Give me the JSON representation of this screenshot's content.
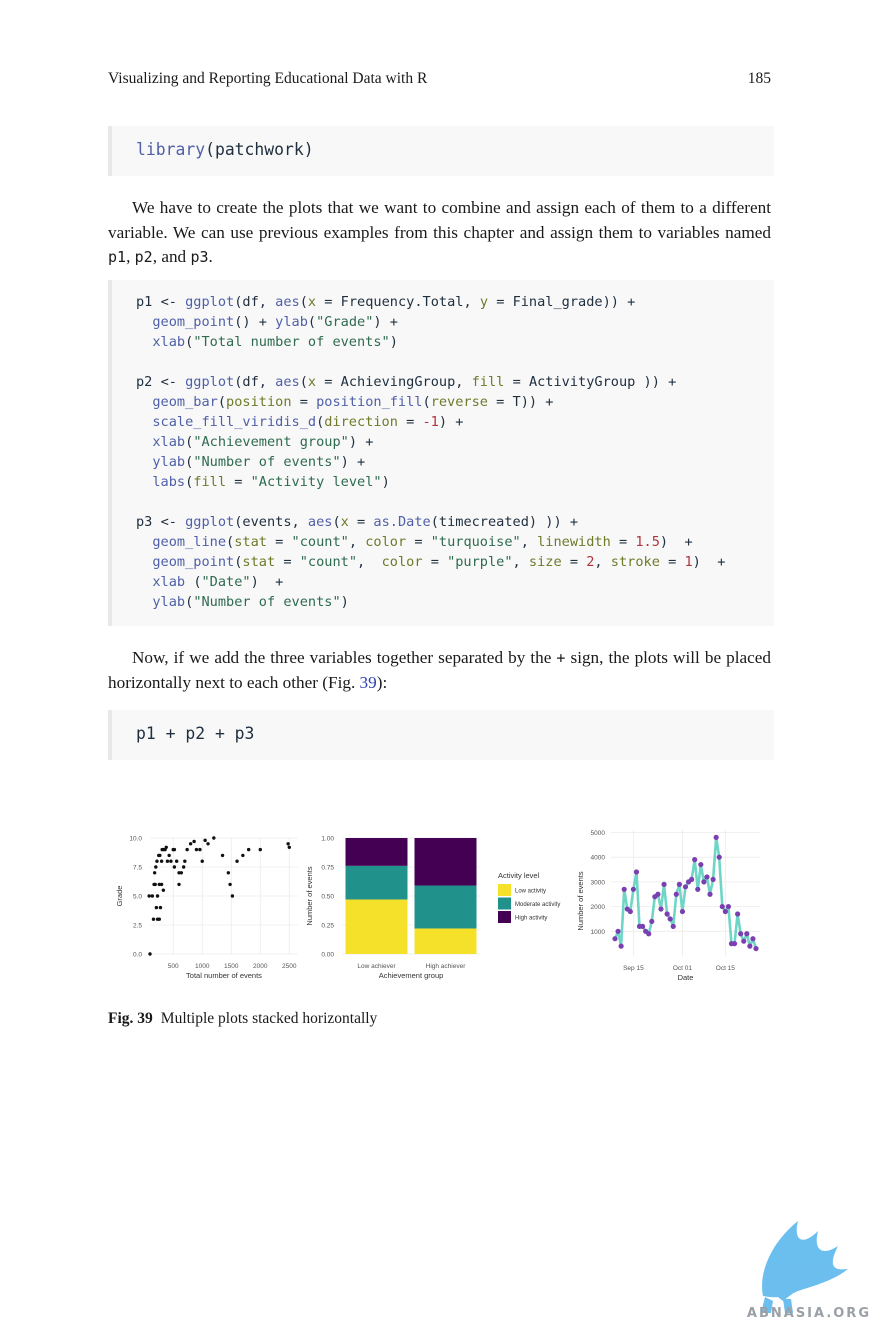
{
  "header": {
    "title": "Visualizing and Reporting Educational Data with R",
    "page_number": "185"
  },
  "code1": {
    "lines": [
      [
        "library",
        "(patchwork)"
      ]
    ]
  },
  "para1": {
    "text": "We have to create the plots that we want to combine and assign each of them to a different variable. We can use previous examples from this chapter and assign them to variables named ",
    "v1": "p1",
    "sep1": ", ",
    "v2": "p2",
    "sep2": ", and ",
    "v3": "p3",
    "end": "."
  },
  "code2": {
    "lines": [
      "p1 <- ggplot(df, aes(x = Frequency.Total, y = Final_grade)) +",
      "  geom_point() + ylab(\"Grade\") +",
      "  xlab(\"Total number of events\")",
      "",
      "p2 <- ggplot(df, aes(x = AchievingGroup, fill = ActivityGroup )) +",
      "  geom_bar(position = position_fill(reverse = T)) +",
      "  scale_fill_viridis_d(direction = -1) +",
      "  xlab(\"Achievement group\") +",
      "  ylab(\"Number of events\") +",
      "  labs(fill = \"Activity level\")",
      "",
      "p3 <- ggplot(events, aes(x = as.Date(timecreated) )) +",
      "  geom_line(stat = \"count\", color = \"turquoise\", linewidth = 1.5)  +",
      "  geom_point(stat = \"count\",  color = \"purple\", size = 2, stroke = 1)  +",
      "  xlab (\"Date\")  +",
      "  ylab(\"Number of events\")"
    ]
  },
  "para2": {
    "text_a": "Now, if we add the three variables together separated by the ",
    "plus": "+",
    "text_b": " sign, the plots will be placed horizontally next to each other (Fig. ",
    "ref": "39",
    "text_c": "):"
  },
  "code3": {
    "line": "p1 + p2 + p3"
  },
  "caption": {
    "label": "Fig. 39",
    "text": "Multiple plots stacked horizontally"
  },
  "watermark": {
    "text": "ABNASIA.ORG"
  },
  "colors": {
    "low": "#f5e12a",
    "moderate": "#21918c",
    "high": "#440154",
    "line": "#6fd6c7",
    "point": "#7a3fb0"
  },
  "chart_data": [
    {
      "type": "scatter",
      "xlabel": "Total number of events",
      "ylabel": "Grade",
      "xticks": [
        500,
        1000,
        1500,
        2000,
        2500
      ],
      "yticks": [
        "0.0",
        "2.5",
        "5.0",
        "7.5",
        "10.0"
      ],
      "xlim": [
        100,
        2650
      ],
      "ylim": [
        0,
        10
      ],
      "points": [
        [
          100,
          0
        ],
        [
          85,
          5
        ],
        [
          140,
          5
        ],
        [
          170,
          6
        ],
        [
          190,
          6
        ],
        [
          210,
          4
        ],
        [
          230,
          3
        ],
        [
          160,
          3
        ],
        [
          260,
          3
        ],
        [
          280,
          4
        ],
        [
          230,
          5
        ],
        [
          260,
          6
        ],
        [
          300,
          6
        ],
        [
          330,
          5.5
        ],
        [
          180,
          7
        ],
        [
          200,
          7.5
        ],
        [
          220,
          8
        ],
        [
          250,
          8.5
        ],
        [
          270,
          8.5
        ],
        [
          300,
          8
        ],
        [
          310,
          9
        ],
        [
          330,
          9
        ],
        [
          360,
          9
        ],
        [
          380,
          9.2
        ],
        [
          400,
          8
        ],
        [
          430,
          8.5
        ],
        [
          460,
          8
        ],
        [
          500,
          9
        ],
        [
          520,
          7.5
        ],
        [
          560,
          8
        ],
        [
          600,
          7
        ],
        [
          640,
          7
        ],
        [
          680,
          7.5
        ],
        [
          700,
          8
        ],
        [
          740,
          9
        ],
        [
          800,
          9.5
        ],
        [
          860,
          9.7
        ],
        [
          900,
          9
        ],
        [
          960,
          9
        ],
        [
          1000,
          8
        ],
        [
          1050,
          9.8
        ],
        [
          1100,
          9.5
        ],
        [
          1200,
          10
        ],
        [
          1350,
          8.5
        ],
        [
          1450,
          7
        ],
        [
          1480,
          6
        ],
        [
          1520,
          5
        ],
        [
          1600,
          8
        ],
        [
          1700,
          8.5
        ],
        [
          1800,
          9
        ],
        [
          2000,
          9
        ],
        [
          2500,
          9.2
        ],
        [
          2480,
          9.5
        ],
        [
          520,
          9
        ],
        [
          600,
          6
        ]
      ]
    },
    {
      "type": "bar",
      "xlabel": "Achievement group",
      "ylabel": "Number of events",
      "categories": [
        "Low achiever",
        "High achiever"
      ],
      "yticks": [
        "0.00",
        "0.25",
        "0.50",
        "0.75",
        "1.00"
      ],
      "ylim": [
        0,
        1
      ],
      "legend": {
        "title": "Activity level",
        "position": "right"
      },
      "series": [
        {
          "name": "Low activity",
          "values": [
            0.47,
            0.22
          ]
        },
        {
          "name": "Moderate activity",
          "values": [
            0.29,
            0.37
          ]
        },
        {
          "name": "High activity",
          "values": [
            0.24,
            0.41
          ]
        }
      ]
    },
    {
      "type": "line",
      "xlabel": "Date",
      "ylabel": "Number of events",
      "x_start": "Sep 09",
      "x_end": "Oct 24",
      "xticks": [
        {
          "label": "Sep 15",
          "day": 6
        },
        {
          "label": "Oct 01",
          "day": 22
        },
        {
          "label": "Oct 15",
          "day": 36
        }
      ],
      "yticks": [
        1000,
        2000,
        3000,
        4000,
        5000
      ],
      "ylim": [
        0,
        5100
      ],
      "values": [
        700,
        1000,
        400,
        2700,
        1900,
        1800,
        2700,
        3400,
        1200,
        1200,
        1000,
        900,
        1400,
        2400,
        2500,
        1900,
        2900,
        1700,
        1500,
        1200,
        2500,
        2900,
        1800,
        2800,
        3000,
        3100,
        3900,
        2700,
        3700,
        3000,
        3200,
        2500,
        3100,
        4800,
        4000,
        2000,
        1800,
        2000,
        500,
        500,
        1700,
        900,
        600,
        900,
        400,
        700,
        300
      ]
    }
  ]
}
